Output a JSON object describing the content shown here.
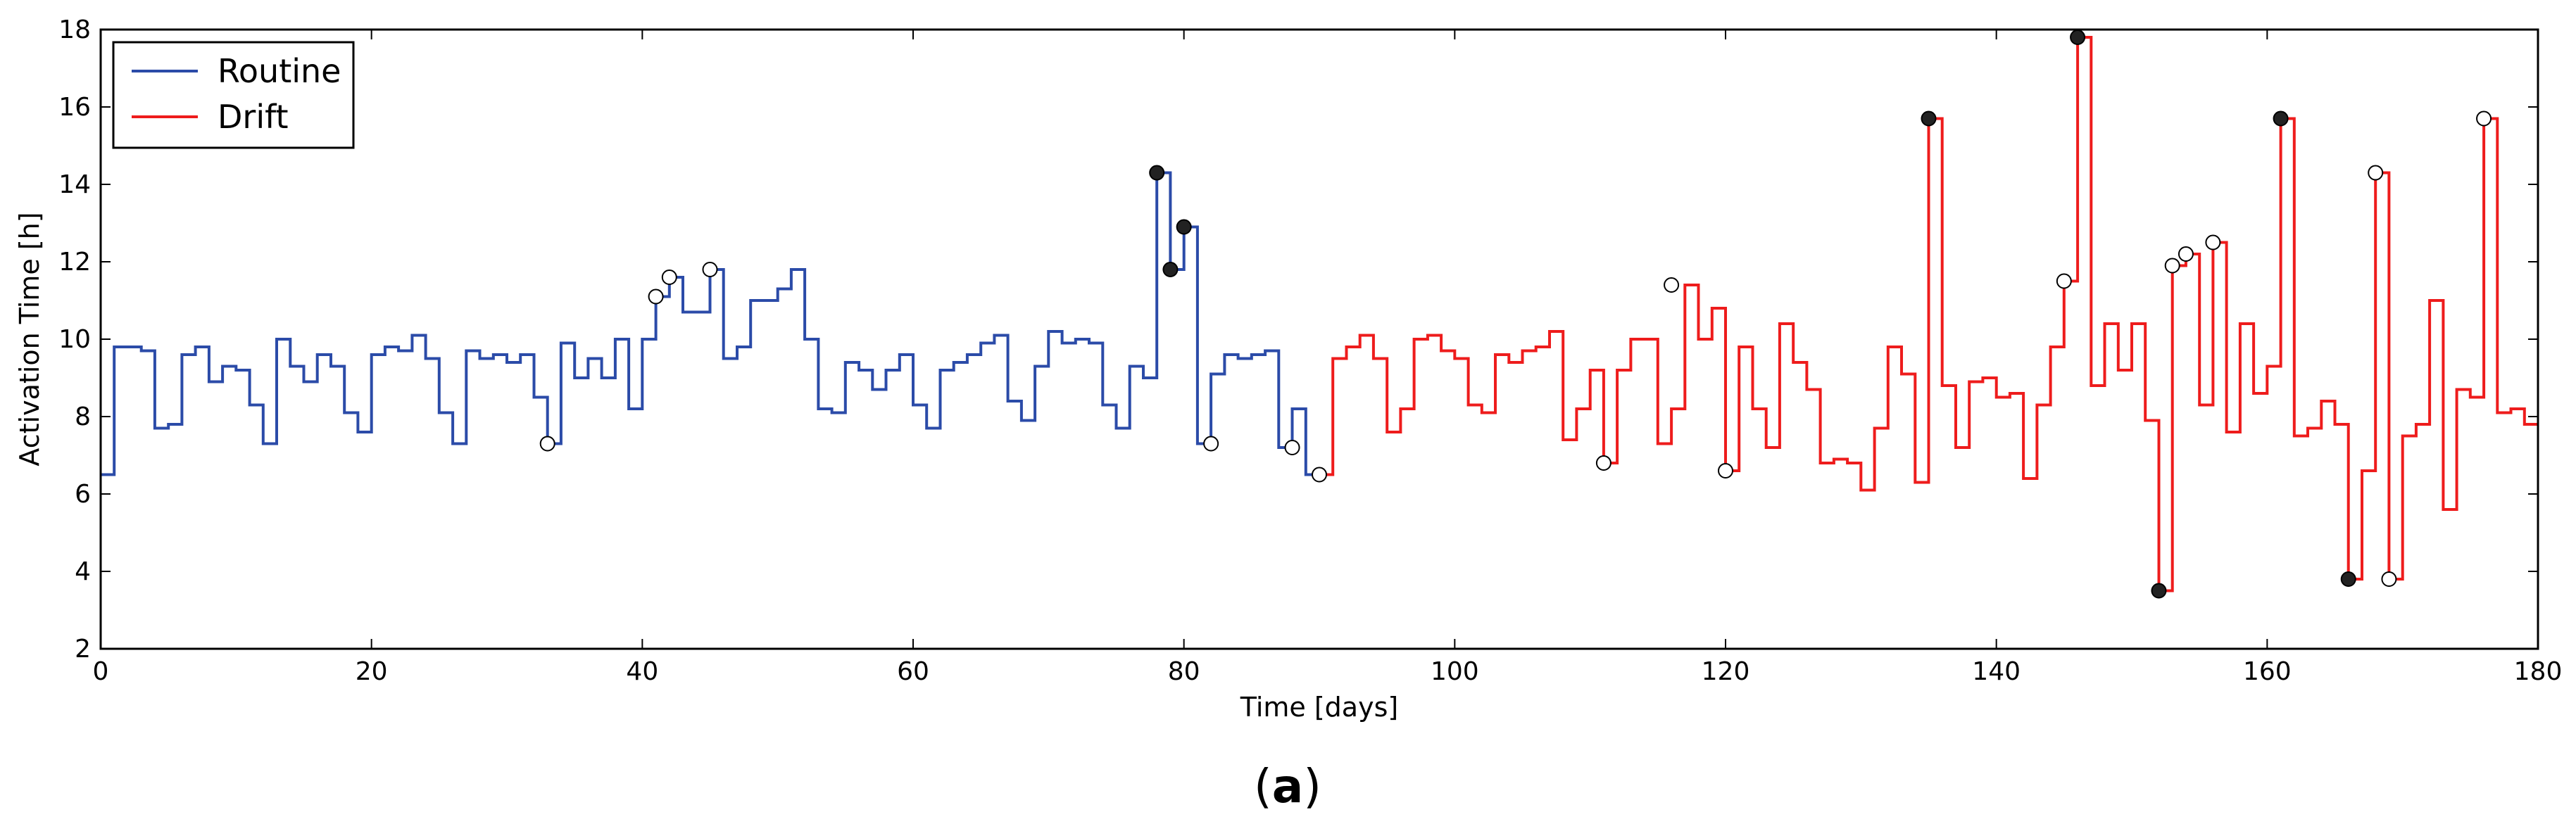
{
  "caption": {
    "open": "(",
    "letter": "a",
    "close": ")"
  },
  "colors": {
    "routine": "#2b4ba8",
    "drift": "#ee1c1c",
    "marker_filled": "#222222",
    "marker_hollow": "#ffffff"
  },
  "chart_data": {
    "type": "line",
    "step": "post",
    "xlabel": "Time [days]",
    "ylabel": "Activation Time [h]",
    "xlim": [
      0,
      180
    ],
    "ylim": [
      2,
      18
    ],
    "xticks": [
      0,
      20,
      40,
      60,
      80,
      100,
      120,
      140,
      160,
      180
    ],
    "yticks": [
      2,
      4,
      6,
      8,
      10,
      12,
      14,
      16,
      18
    ],
    "legend": {
      "position": "top-left",
      "entries": [
        "Routine",
        "Drift"
      ]
    },
    "series": [
      {
        "name": "Routine",
        "color": "#2b4ba8",
        "x": [
          0,
          1,
          2,
          3,
          4,
          5,
          6,
          7,
          8,
          9,
          10,
          11,
          12,
          13,
          14,
          15,
          16,
          17,
          18,
          19,
          20,
          21,
          22,
          23,
          24,
          25,
          26,
          27,
          28,
          29,
          30,
          31,
          32,
          33,
          34,
          35,
          36,
          37,
          38,
          39,
          40,
          41,
          42,
          43,
          44,
          45,
          46,
          47,
          48,
          49,
          50,
          51,
          52,
          53,
          54,
          55,
          56,
          57,
          58,
          59,
          60,
          61,
          62,
          63,
          64,
          65,
          66,
          67,
          68,
          69,
          70,
          71,
          72,
          73,
          74,
          75,
          76,
          77,
          78,
          79,
          80,
          81,
          82,
          83,
          84,
          85,
          86,
          87,
          88,
          89,
          90
        ],
        "y": [
          6.5,
          9.8,
          9.8,
          9.7,
          7.7,
          7.8,
          9.6,
          9.8,
          8.9,
          9.3,
          9.2,
          8.3,
          7.3,
          10.0,
          9.3,
          8.9,
          9.6,
          9.3,
          8.1,
          7.6,
          9.6,
          9.8,
          9.7,
          10.1,
          9.5,
          8.1,
          7.3,
          9.7,
          9.5,
          9.6,
          9.4,
          9.6,
          8.5,
          7.3,
          9.9,
          9.0,
          9.5,
          9.0,
          10.0,
          8.2,
          10.0,
          11.1,
          11.6,
          10.7,
          10.7,
          11.8,
          9.5,
          9.8,
          11.0,
          11.0,
          11.3,
          11.8,
          10.0,
          8.2,
          8.1,
          9.4,
          9.2,
          8.7,
          9.2,
          9.6,
          8.3,
          7.7,
          9.2,
          9.4,
          9.6,
          9.9,
          10.1,
          8.4,
          7.9,
          9.3,
          10.2,
          9.9,
          10.0,
          9.9,
          8.3,
          7.7,
          9.3,
          9.0,
          14.3,
          11.8,
          12.9,
          7.3,
          9.1,
          9.6,
          9.5,
          9.6,
          9.7,
          7.2,
          8.2,
          6.5,
          6.5
        ],
        "filled_markers": [
          [
            78,
            14.3
          ],
          [
            79,
            11.8
          ],
          [
            80,
            12.9
          ]
        ],
        "hollow_markers": [
          [
            33,
            7.3
          ],
          [
            41,
            11.1
          ],
          [
            42,
            11.6
          ],
          [
            45,
            11.8
          ],
          [
            82,
            7.3
          ],
          [
            88,
            7.2
          ],
          [
            90,
            6.5
          ]
        ]
      },
      {
        "name": "Drift",
        "color": "#ee1c1c",
        "x": [
          90,
          91,
          92,
          93,
          94,
          95,
          96,
          97,
          98,
          99,
          100,
          101,
          102,
          103,
          104,
          105,
          106,
          107,
          108,
          109,
          110,
          111,
          112,
          113,
          114,
          115,
          116,
          117,
          118,
          119,
          120,
          121,
          122,
          123,
          124,
          125,
          126,
          127,
          128,
          129,
          130,
          131,
          132,
          133,
          134,
          135,
          136,
          137,
          138,
          139,
          140,
          141,
          142,
          143,
          144,
          145,
          146,
          147,
          148,
          149,
          150,
          151,
          152,
          153,
          154,
          155,
          156,
          157,
          158,
          159,
          160,
          161,
          162,
          163,
          164,
          165,
          166,
          167,
          168,
          169,
          170,
          171,
          172,
          173,
          174,
          175,
          176,
          177,
          178,
          179,
          180
        ],
        "y": [
          6.5,
          9.5,
          9.8,
          10.1,
          9.5,
          7.6,
          8.2,
          10.0,
          10.1,
          9.7,
          9.5,
          8.3,
          8.1,
          9.6,
          9.4,
          9.7,
          9.8,
          10.2,
          7.4,
          8.2,
          9.2,
          6.8,
          9.2,
          10.0,
          10.0,
          7.3,
          8.2,
          11.4,
          10.0,
          10.8,
          6.6,
          9.8,
          8.2,
          7.2,
          10.4,
          9.4,
          8.7,
          6.8,
          6.9,
          6.8,
          6.1,
          7.7,
          9.8,
          9.1,
          6.3,
          15.7,
          8.8,
          7.2,
          8.9,
          9.0,
          8.5,
          8.6,
          6.4,
          8.3,
          9.8,
          11.5,
          17.8,
          8.8,
          10.4,
          9.2,
          10.4,
          7.9,
          3.5,
          11.9,
          12.2,
          8.3,
          12.5,
          7.6,
          10.4,
          8.6,
          9.3,
          15.7,
          7.5,
          7.7,
          8.4,
          7.8,
          3.8,
          6.6,
          14.3,
          3.8,
          7.5,
          7.8,
          11.0,
          5.6,
          8.7,
          8.5,
          15.7,
          8.1,
          8.2,
          7.8,
          7.8
        ],
        "filled_markers": [
          [
            135,
            15.7
          ],
          [
            146,
            17.8
          ],
          [
            152,
            3.5
          ],
          [
            161,
            15.7
          ],
          [
            166,
            3.8
          ]
        ],
        "hollow_markers": [
          [
            111,
            6.8
          ],
          [
            116,
            11.4
          ],
          [
            120,
            6.6
          ],
          [
            145,
            11.5
          ],
          [
            153,
            11.9
          ],
          [
            154,
            12.2
          ],
          [
            156,
            12.5
          ],
          [
            168,
            14.3
          ],
          [
            169,
            3.8
          ],
          [
            176,
            15.7
          ]
        ]
      }
    ]
  }
}
